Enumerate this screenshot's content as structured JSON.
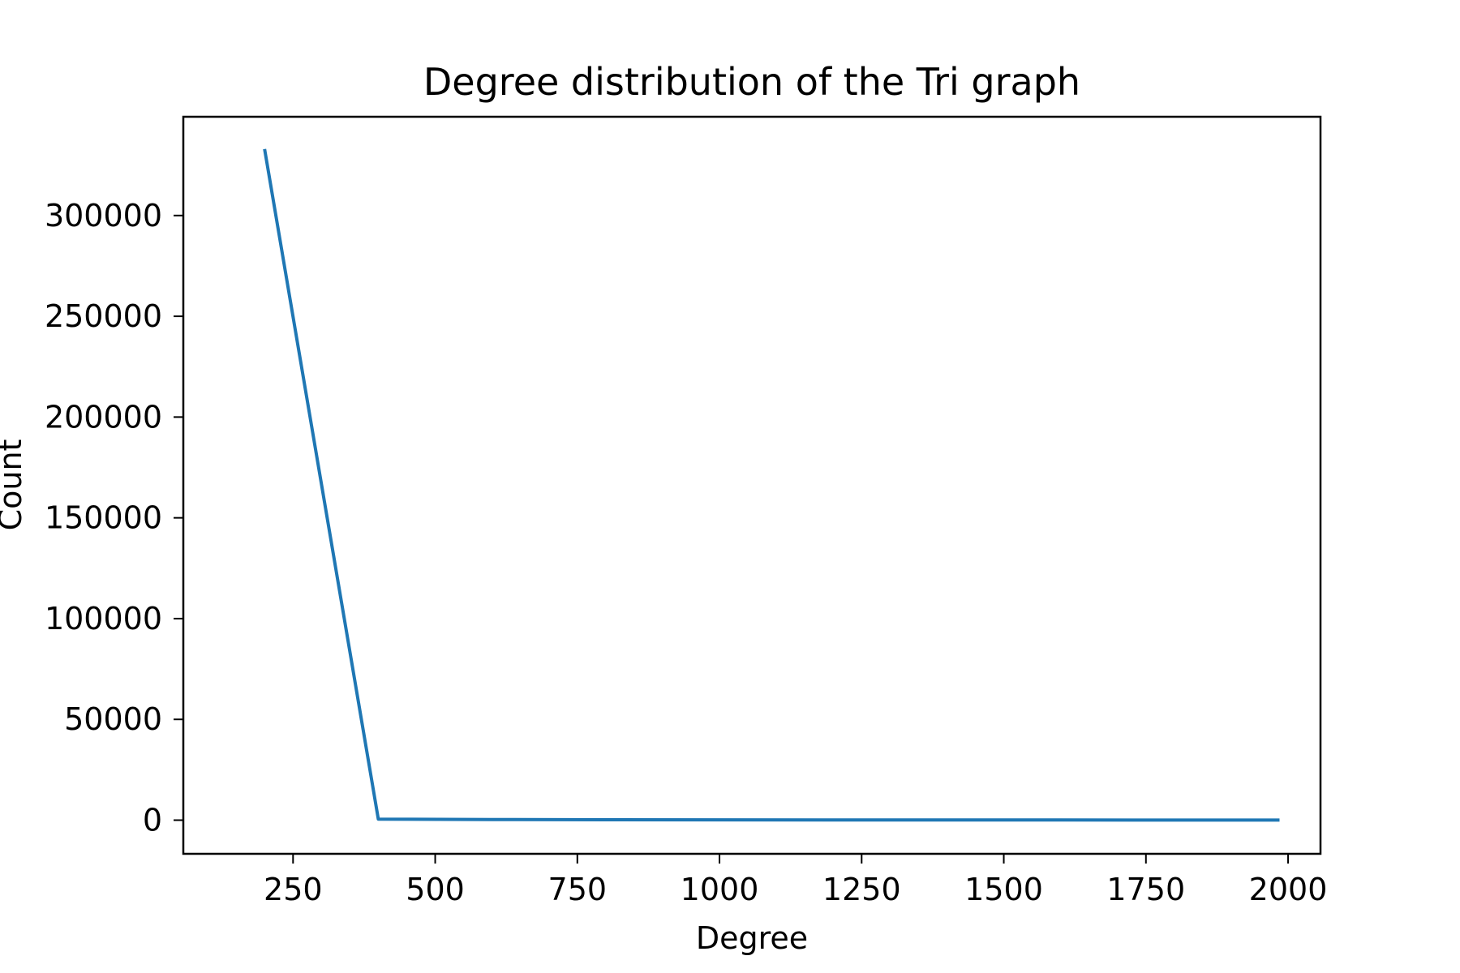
{
  "chart_data": {
    "type": "line",
    "title": "Degree distribution of the Tri graph",
    "xlabel": "Degree",
    "ylabel": "Count",
    "xlim": [
      57,
      2057
    ],
    "ylim": [
      -16700,
      349000
    ],
    "xticks": [
      250,
      500,
      750,
      1000,
      1250,
      1500,
      1750,
      2000
    ],
    "xtick_labels": [
      "250",
      "500",
      "750",
      "1000",
      "1250",
      "1500",
      "1750",
      "2000"
    ],
    "yticks": [
      0,
      50000,
      100000,
      150000,
      200000,
      250000,
      300000
    ],
    "ytick_labels": [
      "0",
      "50000",
      "100000",
      "150000",
      "200000",
      "250000",
      "300000"
    ],
    "grid": false,
    "series": [
      {
        "color": "#1f77b4",
        "x": [
          200,
          400,
          600,
          800,
          1000,
          1200,
          1400,
          1600,
          1800,
          1985
        ],
        "y": [
          333000,
          500,
          300,
          200,
          150,
          100,
          80,
          60,
          40,
          20
        ]
      }
    ]
  }
}
